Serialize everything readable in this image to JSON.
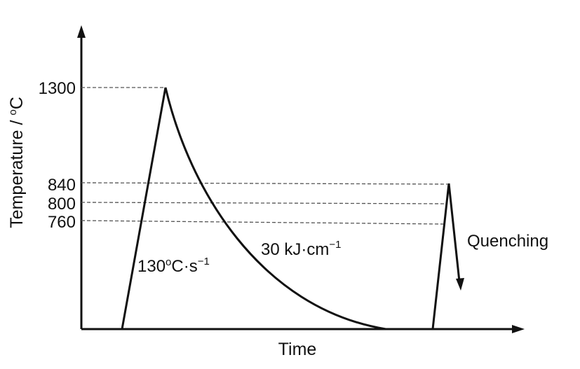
{
  "diagram": {
    "x_axis_label": "Time",
    "y_axis_label": "Temperature / °C",
    "y_axis_label_parts": {
      "before_sup": "Temperature / ",
      "sup": "o",
      "after_sup": "C"
    },
    "temperature_levels": [
      "1300",
      "840",
      "800",
      "760"
    ],
    "heating_rate": {
      "value": "130",
      "sup": "o",
      "unit": "C·s",
      "exp": "−1"
    },
    "heat_input": {
      "text": "30 kJ·cm",
      "exp": "−1"
    },
    "quenching_label": "Quenching"
  }
}
